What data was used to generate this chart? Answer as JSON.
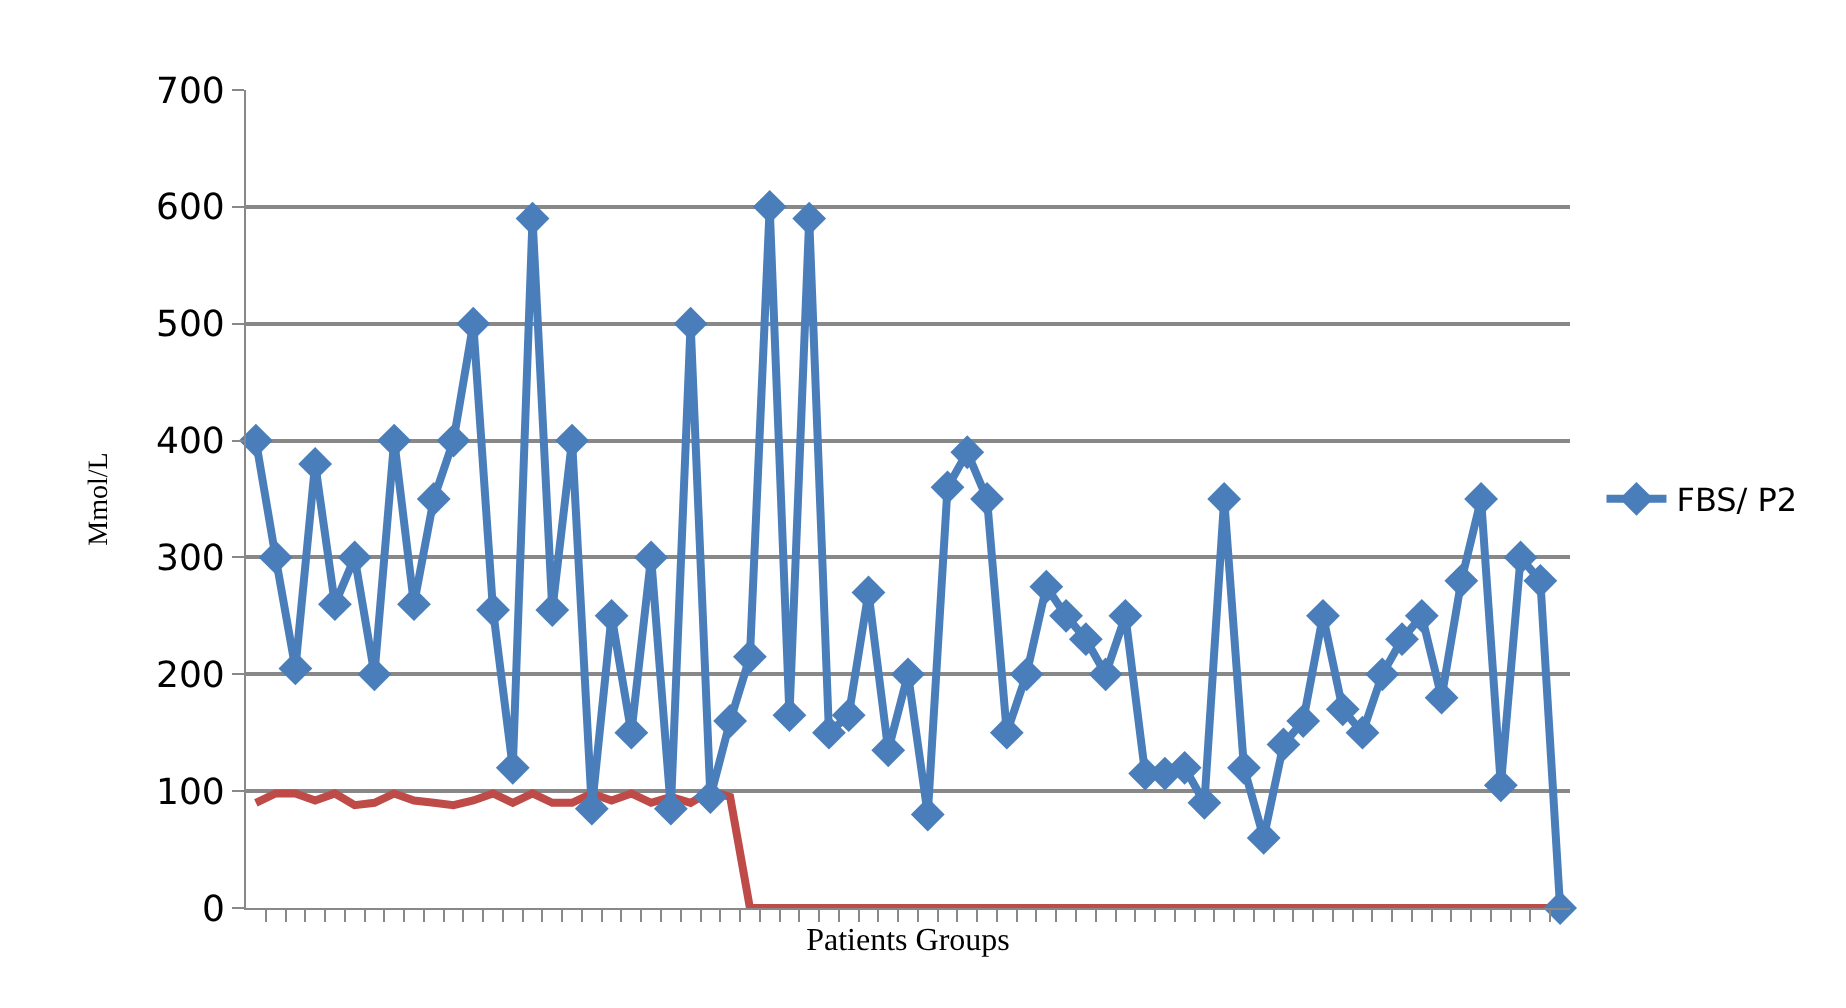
{
  "chart_data": {
    "type": "line",
    "xlabel": "Patients Groups",
    "ylabel": "Mmol/L",
    "categories": [
      null,
      null,
      null,
      null,
      null,
      null,
      null,
      null,
      null,
      null,
      null,
      null,
      null,
      null,
      null,
      null,
      null,
      null,
      null,
      null,
      null,
      null,
      null,
      null,
      null,
      null,
      null,
      null,
      null,
      null,
      null,
      null,
      null,
      null,
      null,
      null,
      null,
      null,
      null,
      null,
      null,
      null,
      null,
      null,
      null,
      null,
      null,
      null,
      null,
      null,
      null,
      null,
      null,
      null,
      null,
      null,
      null,
      null,
      null,
      null,
      null,
      null,
      null,
      null,
      null,
      null,
      null
    ],
    "series": [
      {
        "name": "FBS/ P2",
        "color": "#4a7ebb",
        "marker": "diamond",
        "values": [
          400,
          300,
          205,
          380,
          260,
          300,
          200,
          400,
          260,
          350,
          400,
          500,
          255,
          120,
          590,
          255,
          400,
          85,
          250,
          150,
          300,
          85,
          500,
          95,
          160,
          215,
          600,
          165,
          590,
          150,
          165,
          270,
          135,
          200,
          80,
          360,
          390,
          350,
          150,
          200,
          275,
          250,
          230,
          200,
          250,
          115,
          115,
          120,
          90,
          350,
          120,
          60,
          140,
          160,
          250,
          170,
          150,
          200,
          230,
          250,
          180,
          280,
          350,
          105,
          300,
          280,
          0
        ]
      },
      {
        "color": "#be4b48",
        "marker": "none",
        "values": [
          90,
          98,
          98,
          92,
          98,
          88,
          90,
          98,
          92,
          90,
          88,
          92,
          98,
          90,
          98,
          90,
          90,
          98,
          92,
          98,
          90,
          95,
          90,
          100,
          95,
          0,
          0,
          0,
          0,
          0,
          0,
          0,
          0,
          0,
          0,
          0,
          0,
          0,
          0,
          0,
          0,
          0,
          0,
          0,
          0,
          0,
          0,
          0,
          0,
          0,
          0,
          0,
          0,
          0,
          0,
          0,
          0,
          0,
          0,
          0,
          0,
          0,
          0,
          0,
          0,
          0,
          0
        ]
      }
    ],
    "ylim": [
      0,
      700
    ],
    "yticks": [
      0,
      100,
      200,
      300,
      400,
      500,
      600,
      700
    ],
    "grid": "y",
    "legend": "right",
    "tick_labels": "y",
    "line_style": "solid"
  }
}
